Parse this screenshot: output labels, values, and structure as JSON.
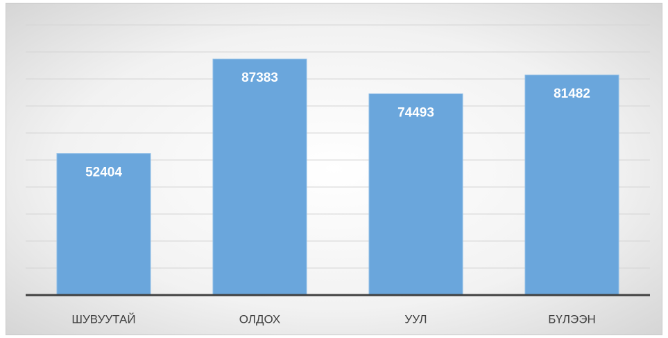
{
  "chart_data": {
    "type": "bar",
    "categories": [
      "ШУВУУТАЙ",
      "ОЛДОХ",
      "УУЛ",
      "БҮЛЭЭН"
    ],
    "values": [
      52404,
      87383,
      74493,
      81482
    ],
    "color": "#6aa6dc",
    "ylim": [
      0,
      100000
    ],
    "yticks": [
      0,
      10000,
      20000,
      30000,
      40000,
      50000,
      60000,
      70000,
      80000,
      90000,
      100000
    ],
    "grid": true
  }
}
